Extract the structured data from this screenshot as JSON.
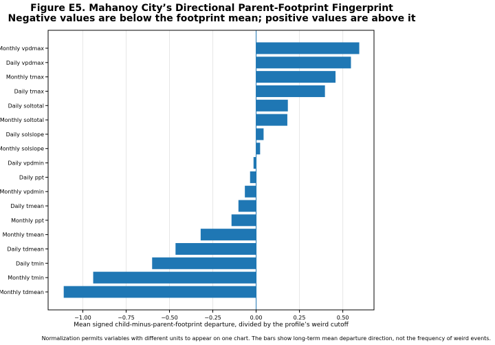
{
  "chart_data": {
    "type": "bar",
    "orientation": "horizontal",
    "title": "Figure E5. Mahanoy City’s Directional Parent-Footprint Fingerprint",
    "subtitle": "Negative values are below the footprint mean; positive values are above it",
    "xlabel": "Mean signed child-minus-parent-footprint departure, divided by the profile’s weird cutoff",
    "ylabel": "",
    "caption": "Normalization permits variables with different units to appear on one chart. The bars show long-term mean departure direction, not the frequency of weird events.",
    "categories": [
      "Monthly vpdmax",
      "Daily vpdmax",
      "Monthly tmax",
      "Daily tmax",
      "Daily soltotal",
      "Monthly soltotal",
      "Daily solslope",
      "Monthly solslope",
      "Daily vpdmin",
      "Daily ppt",
      "Monthly vpdmin",
      "Daily tmean",
      "Monthly ppt",
      "Monthly tmean",
      "Daily tdmean",
      "Daily tmin",
      "Monthly tmin",
      "Monthly tdmean"
    ],
    "values": [
      0.595,
      0.547,
      0.458,
      0.397,
      0.183,
      0.18,
      0.043,
      0.023,
      -0.015,
      -0.035,
      -0.065,
      -0.102,
      -0.142,
      -0.32,
      -0.465,
      -0.6,
      -0.94,
      -1.11
    ],
    "xticks": [
      -1.0,
      -0.75,
      -0.5,
      -0.25,
      0.0,
      0.25,
      0.5
    ],
    "xtick_labels": [
      "−1.00",
      "−0.75",
      "−0.50",
      "−0.25",
      "0.00",
      "0.25",
      "0.50"
    ],
    "xlim": [
      -1.2,
      0.68
    ],
    "grid": "vertical",
    "zero_line": true,
    "colors": {
      "bar": "#1f77b4",
      "zero_line": "#1f77b4",
      "grid": "#e6e6e6",
      "spine": "#000000"
    }
  }
}
